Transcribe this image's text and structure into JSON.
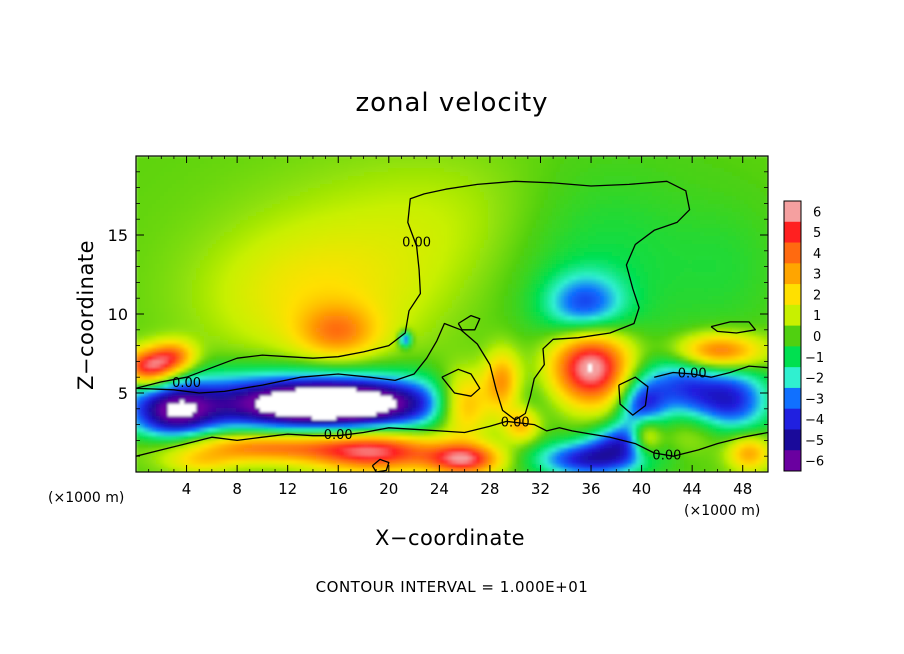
{
  "chart_data": {
    "type": "heatmap",
    "title": "zonal velocity",
    "xlabel": "X−coordinate",
    "ylabel": "Z−coordinate",
    "x_unit_left": "(×1000 m)",
    "x_unit_right": "(×1000 m)",
    "footer": "CONTOUR INTERVAL = 1.000E+01",
    "x_ticks": [
      "4",
      "8",
      "12",
      "16",
      "20",
      "24",
      "28",
      "32",
      "36",
      "40",
      "44",
      "48"
    ],
    "x_tick_values": [
      4,
      8,
      12,
      16,
      20,
      24,
      28,
      32,
      36,
      40,
      44,
      48
    ],
    "y_ticks": [
      "5",
      "10",
      "15"
    ],
    "y_tick_values": [
      5,
      10,
      15
    ],
    "xlim": [
      0,
      50
    ],
    "ylim": [
      0,
      20
    ],
    "colorbar": {
      "labels": [
        "6",
        "5",
        "4",
        "3",
        "2",
        "1",
        "0",
        "−1",
        "−2",
        "−3",
        "−4",
        "−5",
        "−6"
      ],
      "values": [
        6,
        5,
        4,
        3,
        2,
        1,
        0,
        -1,
        -2,
        -3,
        -4,
        -5,
        -6
      ],
      "colors": [
        "#f5a0a0",
        "#ff2020",
        "#ff6a10",
        "#ffa500",
        "#ffe000",
        "#c8f000",
        "#50d010",
        "#00e050",
        "#30f0d0",
        "#1070ff",
        "#2020e0",
        "#1a0a9a",
        "#6a00a0"
      ]
    },
    "contour_level_label": "0.00",
    "contour_labels": [
      {
        "text": "0.00",
        "x": 4,
        "z": 5.6
      },
      {
        "text": "0.00",
        "x": 22.2,
        "z": 14.5
      },
      {
        "text": "0.00",
        "x": 16,
        "z": 2.3
      },
      {
        "text": "0.00",
        "x": 30,
        "z": 3.1
      },
      {
        "text": "0.00",
        "x": 42,
        "z": 1.0
      },
      {
        "text": "0.00",
        "x": 44,
        "z": 6.2
      }
    ],
    "features": [
      {
        "x": 26,
        "z": 15.5,
        "v": 1.0,
        "sx": 10,
        "sz": 3.5
      },
      {
        "x": 14,
        "z": 11,
        "v": 1.6,
        "sx": 6,
        "sz": 3
      },
      {
        "x": 16,
        "z": 8.8,
        "v": 2.6,
        "sx": 2.2,
        "sz": 1.2
      },
      {
        "x": 36,
        "z": 14,
        "v": -1.4,
        "sx": 6,
        "sz": 4
      },
      {
        "x": 35.5,
        "z": 10.5,
        "v": -3.2,
        "sx": 2.2,
        "sz": 1.4
      },
      {
        "x": 47,
        "z": 13,
        "v": -0.5,
        "sx": 3,
        "sz": 3
      },
      {
        "x": 1,
        "z": 6.6,
        "v": 5.5,
        "sx": 1.4,
        "sz": 0.8
      },
      {
        "x": 3,
        "z": 7.3,
        "v": 3.5,
        "sx": 1.2,
        "sz": 0.7
      },
      {
        "x": 13,
        "z": 4.4,
        "v": -5.0,
        "sx": 9,
        "sz": 1.4
      },
      {
        "x": 16,
        "z": 4.3,
        "v": -4.5,
        "sx": 5,
        "sz": 1.0
      },
      {
        "x": 3,
        "z": 3.7,
        "v": -4.2,
        "sx": 2.2,
        "sz": 1.2
      },
      {
        "x": 10,
        "z": 1.6,
        "v": 4.0,
        "sx": 5,
        "sz": 0.7
      },
      {
        "x": 19,
        "z": 1.3,
        "v": 5.2,
        "sx": 3.5,
        "sz": 0.9
      },
      {
        "x": 26,
        "z": 0.8,
        "v": 5.2,
        "sx": 2,
        "sz": 0.7
      },
      {
        "x": 26,
        "z": 4.3,
        "v": 4.5,
        "sx": 1.6,
        "sz": 1.4
      },
      {
        "x": 29,
        "z": 5.6,
        "v": 3.5,
        "sx": 1.0,
        "sz": 1.4
      },
      {
        "x": 30.5,
        "z": 3.0,
        "v": 2.8,
        "sx": 1.0,
        "sz": 0.8
      },
      {
        "x": 36,
        "z": 6.6,
        "v": 6.5,
        "sx": 2.2,
        "sz": 1.7
      },
      {
        "x": 36,
        "z": 0.8,
        "v": -4.5,
        "sx": 3,
        "sz": 0.8
      },
      {
        "x": 38.5,
        "z": 2.0,
        "v": -3.0,
        "sx": 1.8,
        "sz": 0.8
      },
      {
        "x": 40,
        "z": 4.0,
        "v": -4.0,
        "sx": 1.3,
        "sz": 1.4
      },
      {
        "x": 40.3,
        "z": 2.3,
        "v": 4.0,
        "sx": 0.9,
        "sz": 0.9
      },
      {
        "x": 43,
        "z": 5.5,
        "v": -3.0,
        "sx": 2,
        "sz": 1.5
      },
      {
        "x": 47,
        "z": 4.5,
        "v": -4.2,
        "sx": 2.2,
        "sz": 1.5
      },
      {
        "x": 46,
        "z": 7.6,
        "v": 4.3,
        "sx": 2.5,
        "sz": 0.8
      },
      {
        "x": 48.5,
        "z": 1.2,
        "v": 3.0,
        "sx": 1.2,
        "sz": 0.8
      },
      {
        "x": 44,
        "z": 2.6,
        "v": 1.2,
        "sx": 2.5,
        "sz": 1.0
      },
      {
        "x": 21.3,
        "z": 8.4,
        "v": -3.8,
        "sx": 0.35,
        "sz": 0.35
      },
      {
        "x": 5,
        "z": 0.6,
        "v": 1.5,
        "sx": 2,
        "sz": 0.5
      }
    ],
    "contours": [
      [
        [
          0,
          5.3
        ],
        [
          2,
          5.7
        ],
        [
          4,
          6.0
        ],
        [
          6,
          6.6
        ],
        [
          8,
          7.2
        ],
        [
          10,
          7.4
        ],
        [
          12,
          7.3
        ],
        [
          14,
          7.2
        ],
        [
          16,
          7.3
        ],
        [
          18,
          7.6
        ],
        [
          20,
          8.0
        ],
        [
          21.3,
          8.8
        ],
        [
          21.6,
          10.2
        ],
        [
          22.5,
          11.3
        ],
        [
          22.4,
          12.8
        ],
        [
          22.2,
          14.3
        ],
        [
          21.5,
          15.8
        ],
        [
          21.7,
          17.3
        ],
        [
          22.8,
          17.6
        ],
        [
          24.5,
          17.9
        ],
        [
          27,
          18.2
        ],
        [
          30,
          18.4
        ],
        [
          33,
          18.3
        ],
        [
          36,
          18.1
        ],
        [
          39,
          18.2
        ],
        [
          42,
          18.4
        ],
        [
          43.5,
          17.8
        ],
        [
          43.8,
          16.6
        ],
        [
          42.8,
          15.8
        ],
        [
          41,
          15.3
        ],
        [
          39.5,
          14.4
        ],
        [
          38.8,
          13.1
        ],
        [
          39.3,
          11.6
        ],
        [
          39.8,
          10.4
        ],
        [
          39.4,
          9.4
        ],
        [
          37.5,
          8.8
        ],
        [
          35,
          8.5
        ],
        [
          33,
          8.4
        ],
        [
          32.2,
          7.8
        ],
        [
          32.3,
          6.8
        ],
        [
          31.5,
          5.9
        ],
        [
          31.2,
          4.8
        ],
        [
          30.8,
          3.7
        ],
        [
          30,
          3.3
        ],
        [
          29,
          3.9
        ],
        [
          28.5,
          5.2
        ],
        [
          28.0,
          6.8
        ],
        [
          27.0,
          8.1
        ],
        [
          25.7,
          9.0
        ],
        [
          24.4,
          9.4
        ],
        [
          23.8,
          8.3
        ],
        [
          23.0,
          7.2
        ],
        [
          22.0,
          6.2
        ],
        [
          20.5,
          5.8
        ],
        [
          18.5,
          6.0
        ],
        [
          16,
          6.2
        ],
        [
          13,
          6.0
        ],
        [
          10,
          5.5
        ],
        [
          7,
          5.1
        ],
        [
          5,
          5.0
        ],
        [
          3,
          5.2
        ],
        [
          0,
          5.3
        ]
      ],
      [
        [
          0,
          1.0
        ],
        [
          2,
          1.4
        ],
        [
          4,
          1.8
        ],
        [
          6,
          2.2
        ],
        [
          8,
          2.0
        ],
        [
          10,
          2.2
        ],
        [
          12,
          2.4
        ],
        [
          14,
          2.3
        ],
        [
          16,
          2.3
        ],
        [
          18,
          2.5
        ],
        [
          20,
          2.8
        ],
        [
          22,
          2.7
        ],
        [
          24,
          2.6
        ],
        [
          26,
          2.5
        ],
        [
          28,
          2.9
        ],
        [
          29.3,
          3.2
        ],
        [
          30.4,
          3.1
        ],
        [
          31.5,
          3.0
        ],
        [
          32.5,
          2.6
        ],
        [
          33.5,
          2.8
        ],
        [
          34.5,
          2.6
        ],
        [
          36,
          2.4
        ],
        [
          37.5,
          2.2
        ],
        [
          39.5,
          1.8
        ],
        [
          41,
          1.2
        ],
        [
          42.5,
          1.0
        ],
        [
          44.5,
          1.4
        ],
        [
          46,
          1.8
        ],
        [
          48,
          2.2
        ],
        [
          50,
          2.5
        ]
      ],
      [
        [
          41,
          6.0
        ],
        [
          42.5,
          6.3
        ],
        [
          44,
          6.2
        ],
        [
          45.5,
          6.0
        ],
        [
          47,
          6.3
        ],
        [
          48.5,
          6.7
        ],
        [
          50,
          6.6
        ]
      ],
      [
        [
          45.5,
          9.2
        ],
        [
          47,
          9.5
        ],
        [
          48.5,
          9.5
        ],
        [
          49,
          9.0
        ],
        [
          47.5,
          8.8
        ],
        [
          46,
          8.9
        ],
        [
          45.5,
          9.2
        ]
      ],
      [
        [
          38.2,
          5.5
        ],
        [
          39.5,
          6.0
        ],
        [
          40.5,
          5.4
        ],
        [
          40.3,
          4.2
        ],
        [
          39.3,
          3.6
        ],
        [
          38.3,
          4.3
        ],
        [
          38.2,
          5.5
        ]
      ],
      [
        [
          25.5,
          9.4
        ],
        [
          26.5,
          9.9
        ],
        [
          27.2,
          9.7
        ],
        [
          26.8,
          9.0
        ],
        [
          25.8,
          9.0
        ],
        [
          25.5,
          9.4
        ]
      ],
      [
        [
          24.2,
          6.0
        ],
        [
          25.5,
          6.5
        ],
        [
          26.5,
          6.2
        ],
        [
          27.2,
          5.3
        ],
        [
          26.5,
          4.8
        ],
        [
          25.2,
          5.0
        ],
        [
          24.2,
          6.0
        ]
      ],
      [
        [
          18.7,
          0.4
        ],
        [
          19.3,
          0.8
        ],
        [
          20.0,
          0.6
        ],
        [
          19.8,
          0.1
        ],
        [
          19.0,
          0.0
        ],
        [
          18.7,
          0.4
        ]
      ]
    ]
  }
}
